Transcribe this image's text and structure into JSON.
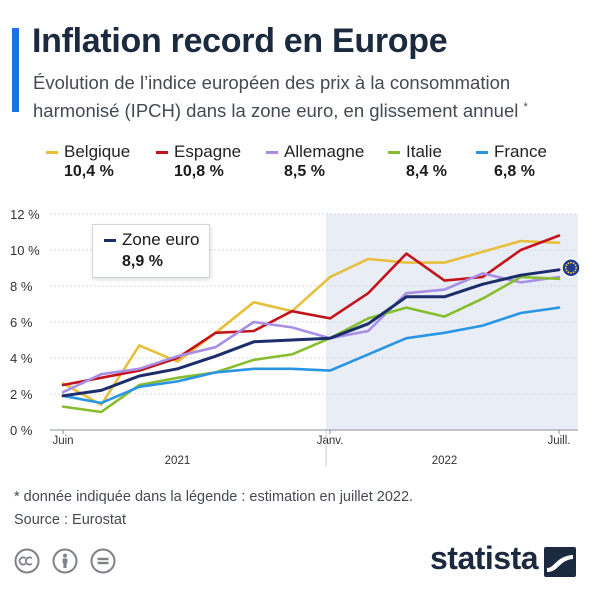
{
  "header": {
    "title": "Inflation record en Europe",
    "subtitle": "Évolution de l’indice européen des prix à la consommation harmonisé (IPCH) dans la zone euro, en glissement annuel",
    "subtitle_mark": "*"
  },
  "legend": {
    "items": [
      {
        "label": "Belgique",
        "value": "10,4 %",
        "color": "#e8bf3c"
      },
      {
        "label": "Espagne",
        "value": "10,8 %",
        "color": "#c3141b"
      },
      {
        "label": "Allemagne",
        "value": "8,5 %",
        "color": "#a98ee6"
      },
      {
        "label": "Italie",
        "value": "8,4 %",
        "color": "#86bd2c"
      },
      {
        "label": "France",
        "value": "6,8 %",
        "color": "#2a95e4"
      }
    ],
    "zone_euro": {
      "label": "Zone euro",
      "value": "8,9 %",
      "color": "#1b2d6b"
    }
  },
  "chart_data": {
    "type": "line",
    "x": [
      "2021-06",
      "2021-07",
      "2021-08",
      "2021-09",
      "2021-10",
      "2021-11",
      "2021-12",
      "2022-01",
      "2022-02",
      "2022-03",
      "2022-04",
      "2022-05",
      "2022-06",
      "2022-07"
    ],
    "x_tick_labels": [
      {
        "label": "Juin",
        "x": "2021-06"
      },
      {
        "label": "Janv.",
        "x": "2022-01"
      },
      {
        "label": "Juill.",
        "x": "2022-07"
      }
    ],
    "year_labels": [
      {
        "label": "2021",
        "x": "2021-09"
      },
      {
        "label": "2022",
        "x": "2022-04"
      }
    ],
    "highlight_from": "2022-01",
    "ylim": [
      0,
      12
    ],
    "y_ticks": [
      {
        "value": 0,
        "label": "0 %"
      },
      {
        "value": 2,
        "label": "2 %"
      },
      {
        "value": 4,
        "label": "4 %"
      },
      {
        "value": 6,
        "label": "6 %"
      },
      {
        "value": 8,
        "label": "8 %"
      },
      {
        "value": 10,
        "label": "10 %"
      },
      {
        "value": 12,
        "label": "12 %"
      }
    ],
    "grid": true,
    "series": [
      {
        "name": "Belgique",
        "color": "#e8bf3c",
        "values": [
          2.6,
          1.4,
          4.7,
          3.8,
          5.4,
          7.1,
          6.6,
          8.5,
          9.5,
          9.3,
          9.3,
          9.9,
          10.5,
          10.4
        ]
      },
      {
        "name": "Espagne",
        "color": "#c3141b",
        "values": [
          2.5,
          2.9,
          3.3,
          4.0,
          5.4,
          5.5,
          6.6,
          6.2,
          7.6,
          9.8,
          8.3,
          8.5,
          10.0,
          10.8
        ]
      },
      {
        "name": "Allemagne",
        "color": "#a98ee6",
        "values": [
          2.1,
          3.1,
          3.4,
          4.1,
          4.6,
          6.0,
          5.7,
          5.1,
          5.5,
          7.6,
          7.8,
          8.7,
          8.2,
          8.5
        ]
      },
      {
        "name": "Italie",
        "color": "#86bd2c",
        "values": [
          1.3,
          1.0,
          2.5,
          2.9,
          3.2,
          3.9,
          4.2,
          5.1,
          6.2,
          6.8,
          6.3,
          7.3,
          8.5,
          8.4
        ]
      },
      {
        "name": "France",
        "color": "#2a95e4",
        "values": [
          1.9,
          1.5,
          2.4,
          2.7,
          3.2,
          3.4,
          3.4,
          3.3,
          4.2,
          5.1,
          5.4,
          5.8,
          6.5,
          6.8
        ]
      },
      {
        "name": "Zone euro",
        "color": "#1b2d6b",
        "values": [
          1.9,
          2.2,
          3.0,
          3.4,
          4.1,
          4.9,
          5.0,
          5.1,
          5.9,
          7.4,
          7.4,
          8.1,
          8.6,
          8.9
        ]
      }
    ]
  },
  "footer": {
    "footnote": "* donnée indiquée dans la légende : estimation en juillet 2022.",
    "source": "Source : Eurostat",
    "brand": "statista"
  },
  "icons": [
    "cc-icon",
    "by-icon",
    "nd-icon",
    "eu-flag-icon",
    "statista-logo-icon"
  ]
}
